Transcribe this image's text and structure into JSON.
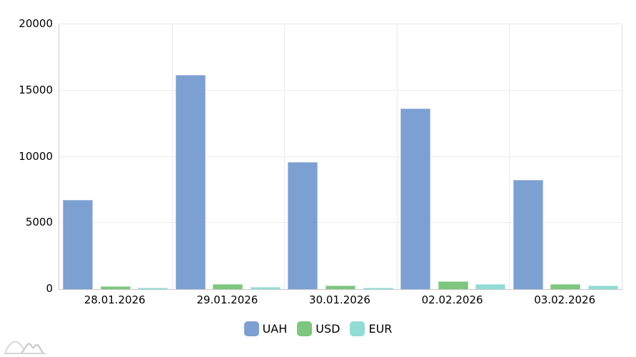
{
  "chart_data": {
    "type": "bar",
    "title": "",
    "categories": [
      "28.01.2026",
      "29.01.2026",
      "30.01.2026",
      "02.02.2026",
      "03.02.2026"
    ],
    "series": [
      {
        "name": "UAH",
        "color": "#7DA0D2",
        "values": [
          6750,
          16150,
          9620,
          13650,
          8260
        ]
      },
      {
        "name": "USD",
        "color": "#7CC67D",
        "values": [
          240,
          360,
          290,
          590,
          360
        ]
      },
      {
        "name": "EUR",
        "color": "#91DCD4",
        "values": [
          90,
          170,
          130,
          365,
          250
        ]
      }
    ],
    "xlabel": "",
    "ylabel": "",
    "ylim": [
      0,
      20000
    ],
    "yticks": [
      0,
      5000,
      10000,
      15000,
      20000
    ],
    "grid": true,
    "legend_position": "bottom"
  },
  "colors": {
    "axis_line": "#c9c9c9",
    "gridline": "#ebebeb",
    "text": "#000000",
    "watermark": "#d6d6d6"
  },
  "watermark": {
    "name": "anychart-logo"
  }
}
